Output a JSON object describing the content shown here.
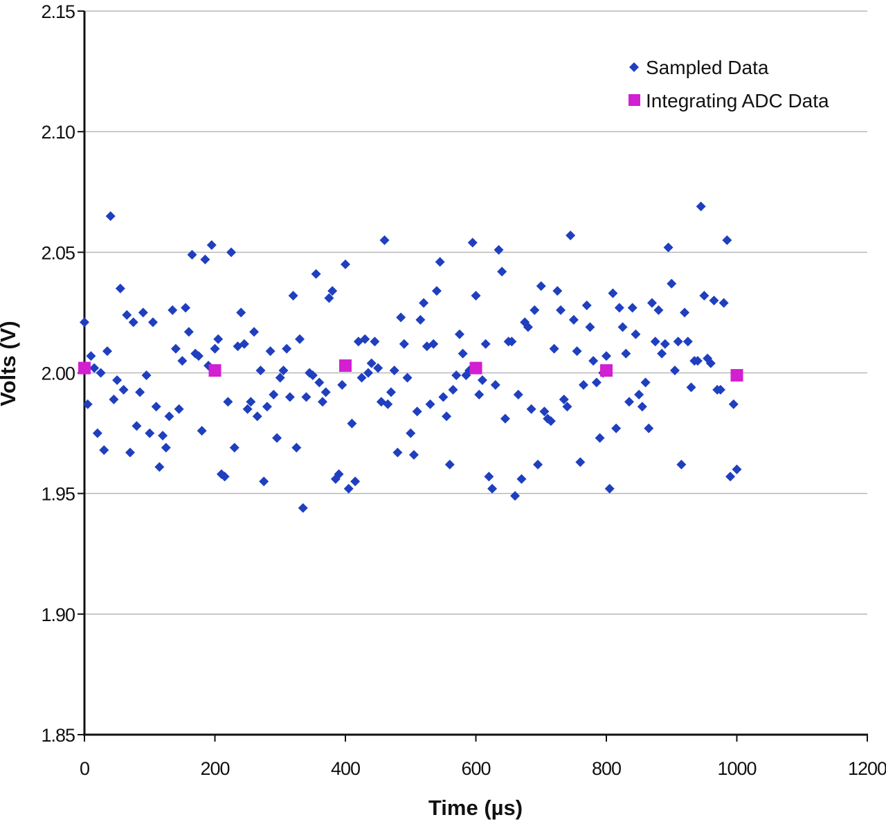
{
  "chart_data": {
    "type": "scatter",
    "title": "",
    "xlabel": "Time (µs)",
    "ylabel": "Volts (V)",
    "xlim": [
      0,
      1200
    ],
    "ylim": [
      1.85,
      2.15
    ],
    "x_ticks": [
      "0",
      "200",
      "400",
      "600",
      "800",
      "1000",
      "1200"
    ],
    "y_ticks": [
      "1.85",
      "1.90",
      "1.95",
      "2.00",
      "2.05",
      "2.10",
      "2.15"
    ],
    "grid": "horizontal",
    "legend_position": "top-right",
    "series": [
      {
        "name": "Sampled Data",
        "marker": "diamond",
        "color": "#1f3fbf",
        "points": [
          [
            0,
            2.021
          ],
          [
            5,
            1.987
          ],
          [
            10,
            2.007
          ],
          [
            15,
            2.002
          ],
          [
            20,
            1.975
          ],
          [
            25,
            2.0
          ],
          [
            30,
            1.968
          ],
          [
            35,
            2.009
          ],
          [
            40,
            2.065
          ],
          [
            45,
            1.989
          ],
          [
            50,
            1.997
          ],
          [
            55,
            2.035
          ],
          [
            60,
            1.993
          ],
          [
            65,
            2.024
          ],
          [
            70,
            1.967
          ],
          [
            75,
            2.021
          ],
          [
            80,
            1.978
          ],
          [
            85,
            1.992
          ],
          [
            90,
            2.025
          ],
          [
            95,
            1.999
          ],
          [
            100,
            1.975
          ],
          [
            105,
            2.021
          ],
          [
            110,
            1.986
          ],
          [
            115,
            1.961
          ],
          [
            120,
            1.974
          ],
          [
            125,
            1.969
          ],
          [
            130,
            1.982
          ],
          [
            135,
            2.026
          ],
          [
            140,
            2.01
          ],
          [
            145,
            1.985
          ],
          [
            150,
            2.005
          ],
          [
            155,
            2.027
          ],
          [
            160,
            2.017
          ],
          [
            165,
            2.049
          ],
          [
            170,
            2.008
          ],
          [
            175,
            2.007
          ],
          [
            180,
            1.976
          ],
          [
            185,
            2.047
          ],
          [
            190,
            2.003
          ],
          [
            195,
            2.053
          ],
          [
            200,
            2.01
          ],
          [
            205,
            2.014
          ],
          [
            210,
            1.958
          ],
          [
            215,
            1.957
          ],
          [
            220,
            1.988
          ],
          [
            225,
            2.05
          ],
          [
            230,
            1.969
          ],
          [
            235,
            2.011
          ],
          [
            240,
            2.025
          ],
          [
            245,
            2.012
          ],
          [
            250,
            1.985
          ],
          [
            255,
            1.988
          ],
          [
            260,
            2.017
          ],
          [
            265,
            1.982
          ],
          [
            270,
            2.001
          ],
          [
            275,
            1.955
          ],
          [
            280,
            1.986
          ],
          [
            285,
            2.009
          ],
          [
            290,
            1.991
          ],
          [
            295,
            1.973
          ],
          [
            300,
            1.998
          ],
          [
            305,
            2.001
          ],
          [
            310,
            2.01
          ],
          [
            315,
            1.99
          ],
          [
            320,
            2.032
          ],
          [
            325,
            1.969
          ],
          [
            330,
            2.014
          ],
          [
            335,
            1.944
          ],
          [
            340,
            1.99
          ],
          [
            345,
            2.0
          ],
          [
            350,
            1.999
          ],
          [
            355,
            2.041
          ],
          [
            360,
            1.996
          ],
          [
            365,
            1.988
          ],
          [
            370,
            1.992
          ],
          [
            375,
            2.031
          ],
          [
            380,
            2.034
          ],
          [
            385,
            1.956
          ],
          [
            390,
            1.958
          ],
          [
            395,
            1.995
          ],
          [
            400,
            2.045
          ],
          [
            405,
            1.952
          ],
          [
            410,
            1.979
          ],
          [
            415,
            1.955
          ],
          [
            420,
            2.013
          ],
          [
            425,
            1.998
          ],
          [
            430,
            2.014
          ],
          [
            435,
            2.0
          ],
          [
            440,
            2.004
          ],
          [
            445,
            2.013
          ],
          [
            450,
            2.002
          ],
          [
            455,
            1.988
          ],
          [
            460,
            2.055
          ],
          [
            465,
            1.987
          ],
          [
            470,
            1.992
          ],
          [
            475,
            2.001
          ],
          [
            480,
            1.967
          ],
          [
            485,
            2.023
          ],
          [
            490,
            2.012
          ],
          [
            495,
            1.998
          ],
          [
            500,
            1.975
          ],
          [
            505,
            1.966
          ],
          [
            510,
            1.984
          ],
          [
            515,
            2.022
          ],
          [
            520,
            2.029
          ],
          [
            525,
            2.011
          ],
          [
            530,
            1.987
          ],
          [
            535,
            2.012
          ],
          [
            540,
            2.034
          ],
          [
            545,
            2.046
          ],
          [
            550,
            1.99
          ],
          [
            555,
            1.982
          ],
          [
            560,
            1.962
          ],
          [
            565,
            1.993
          ],
          [
            570,
            1.999
          ],
          [
            575,
            2.016
          ],
          [
            580,
            2.008
          ],
          [
            585,
            1.999
          ],
          [
            590,
            2.001
          ],
          [
            595,
            2.054
          ],
          [
            600,
            2.032
          ],
          [
            605,
            1.991
          ],
          [
            610,
            1.997
          ],
          [
            615,
            2.012
          ],
          [
            620,
            1.957
          ],
          [
            625,
            1.952
          ],
          [
            630,
            1.995
          ],
          [
            635,
            2.051
          ],
          [
            640,
            2.042
          ],
          [
            645,
            1.981
          ],
          [
            650,
            2.013
          ],
          [
            655,
            2.013
          ],
          [
            660,
            1.949
          ],
          [
            665,
            1.991
          ],
          [
            670,
            1.956
          ],
          [
            675,
            2.021
          ],
          [
            680,
            2.019
          ],
          [
            685,
            1.985
          ],
          [
            690,
            2.026
          ],
          [
            695,
            1.962
          ],
          [
            700,
            2.036
          ],
          [
            705,
            1.984
          ],
          [
            710,
            1.981
          ],
          [
            715,
            1.98
          ],
          [
            720,
            2.01
          ],
          [
            725,
            2.034
          ],
          [
            730,
            2.026
          ],
          [
            735,
            1.989
          ],
          [
            740,
            1.986
          ],
          [
            745,
            2.057
          ],
          [
            750,
            2.022
          ],
          [
            755,
            2.009
          ],
          [
            760,
            1.963
          ],
          [
            765,
            1.995
          ],
          [
            770,
            2.028
          ],
          [
            775,
            2.019
          ],
          [
            780,
            2.005
          ],
          [
            785,
            1.996
          ],
          [
            790,
            1.973
          ],
          [
            795,
            2.0
          ],
          [
            800,
            2.007
          ],
          [
            805,
            1.952
          ],
          [
            810,
            2.033
          ],
          [
            815,
            1.977
          ],
          [
            820,
            2.027
          ],
          [
            825,
            2.019
          ],
          [
            830,
            2.008
          ],
          [
            835,
            1.988
          ],
          [
            840,
            2.027
          ],
          [
            845,
            2.016
          ],
          [
            850,
            1.991
          ],
          [
            855,
            1.986
          ],
          [
            860,
            1.996
          ],
          [
            865,
            1.977
          ],
          [
            870,
            2.029
          ],
          [
            875,
            2.013
          ],
          [
            880,
            2.026
          ],
          [
            885,
            2.008
          ],
          [
            890,
            2.012
          ],
          [
            895,
            2.052
          ],
          [
            900,
            2.037
          ],
          [
            905,
            2.001
          ],
          [
            910,
            2.013
          ],
          [
            915,
            1.962
          ],
          [
            920,
            2.025
          ],
          [
            925,
            2.013
          ],
          [
            930,
            1.994
          ],
          [
            935,
            2.005
          ],
          [
            940,
            2.005
          ],
          [
            945,
            2.069
          ],
          [
            950,
            2.032
          ],
          [
            955,
            2.006
          ],
          [
            960,
            2.004
          ],
          [
            965,
            2.03
          ],
          [
            970,
            1.993
          ],
          [
            975,
            1.993
          ],
          [
            980,
            2.029
          ],
          [
            985,
            2.055
          ],
          [
            990,
            1.957
          ],
          [
            995,
            1.987
          ],
          [
            1000,
            1.96
          ]
        ]
      },
      {
        "name": "Integrating ADC Data",
        "marker": "square",
        "color": "#d21fd2",
        "points": [
          [
            0,
            2.002
          ],
          [
            200,
            2.001
          ],
          [
            400,
            2.003
          ],
          [
            600,
            2.002
          ],
          [
            800,
            2.001
          ],
          [
            1000,
            1.999
          ]
        ]
      }
    ]
  }
}
